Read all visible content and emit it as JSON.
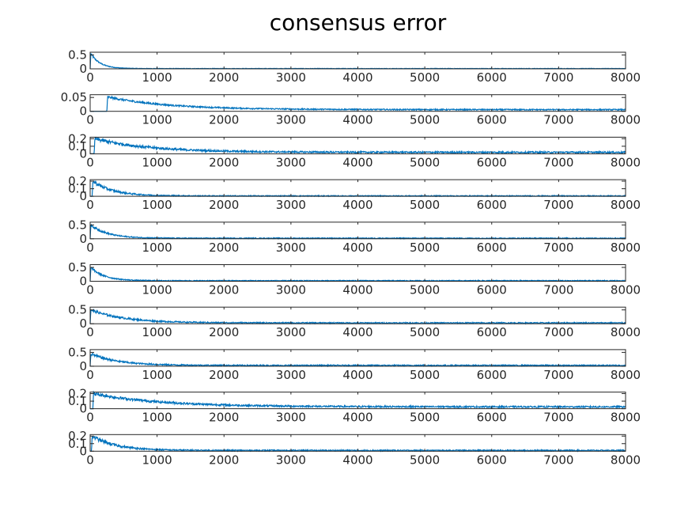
{
  "figure": {
    "title": "consensus error",
    "line_color": "#0072bd",
    "axis_color": "#262626"
  },
  "chart_data": [
    {
      "type": "line",
      "xlim": [
        0,
        8000
      ],
      "ylim": [
        0,
        0.6
      ],
      "yticks": [
        0,
        0.5
      ],
      "xticks": [
        0,
        1000,
        2000,
        3000,
        4000,
        5000,
        6000,
        7000,
        8000
      ],
      "series": [
        {
          "start": 0,
          "peak_x": 10,
          "peak": 0.55,
          "decay": 140,
          "floor": 0.01,
          "tail_amp": 0.008,
          "noise": 0.03
        }
      ]
    },
    {
      "type": "line",
      "xlim": [
        0,
        8000
      ],
      "ylim": [
        0,
        0.06
      ],
      "yticks": [
        0,
        0.05
      ],
      "xticks": [
        0,
        1000,
        2000,
        3000,
        4000,
        5000,
        6000,
        7000,
        8000
      ],
      "series": [
        {
          "start": 250,
          "peak_x": 260,
          "peak": 0.052,
          "decay": 900,
          "floor": 0.006,
          "tail_amp": 0.002,
          "noise": 0.002
        }
      ]
    },
    {
      "type": "line",
      "xlim": [
        0,
        8000
      ],
      "ylim": [
        0,
        0.22
      ],
      "yticks": [
        0,
        0.1,
        0.2
      ],
      "xticks": [
        0,
        1000,
        2000,
        3000,
        4000,
        5000,
        6000,
        7000,
        8000
      ],
      "series": [
        {
          "start": 60,
          "peak_x": 70,
          "peak": 0.2,
          "decay": 800,
          "floor": 0.02,
          "tail_amp": 0.01,
          "noise": 0.015
        }
      ]
    },
    {
      "type": "line",
      "xlim": [
        0,
        8000
      ],
      "ylim": [
        0,
        0.22
      ],
      "yticks": [
        0,
        0.1,
        0.2
      ],
      "xticks": [
        0,
        1000,
        2000,
        3000,
        4000,
        5000,
        6000,
        7000,
        8000
      ],
      "series": [
        {
          "start": 30,
          "peak_x": 40,
          "peak": 0.2,
          "decay": 300,
          "floor": 0.005,
          "tail_amp": 0.006,
          "noise": 0.02
        }
      ]
    },
    {
      "type": "line",
      "xlim": [
        0,
        8000
      ],
      "ylim": [
        0,
        0.6
      ],
      "yticks": [
        0,
        0.5
      ],
      "xticks": [
        0,
        1000,
        2000,
        3000,
        4000,
        5000,
        6000,
        7000,
        8000
      ],
      "series": [
        {
          "start": 0,
          "peak_x": 10,
          "peak": 0.5,
          "decay": 250,
          "floor": 0.02,
          "tail_amp": 0.015,
          "noise": 0.03
        }
      ]
    },
    {
      "type": "line",
      "xlim": [
        0,
        8000
      ],
      "ylim": [
        0,
        0.6
      ],
      "yticks": [
        0,
        0.5
      ],
      "xticks": [
        0,
        1000,
        2000,
        3000,
        4000,
        5000,
        6000,
        7000,
        8000
      ],
      "series": [
        {
          "start": 0,
          "peak_x": 10,
          "peak": 0.5,
          "decay": 200,
          "floor": 0.02,
          "tail_amp": 0.015,
          "noise": 0.03
        }
      ]
    },
    {
      "type": "line",
      "xlim": [
        0,
        8000
      ],
      "ylim": [
        0,
        0.6
      ],
      "yticks": [
        0,
        0.5
      ],
      "xticks": [
        0,
        1000,
        2000,
        3000,
        4000,
        5000,
        6000,
        7000,
        8000
      ],
      "series": [
        {
          "start": 0,
          "peak_x": 10,
          "peak": 0.5,
          "decay": 500,
          "floor": 0.03,
          "tail_amp": 0.02,
          "noise": 0.03
        }
      ]
    },
    {
      "type": "line",
      "xlim": [
        0,
        8000
      ],
      "ylim": [
        0,
        0.6
      ],
      "yticks": [
        0,
        0.5
      ],
      "xticks": [
        0,
        1000,
        2000,
        3000,
        4000,
        5000,
        6000,
        7000,
        8000
      ],
      "series": [
        {
          "start": 0,
          "peak_x": 10,
          "peak": 0.45,
          "decay": 400,
          "floor": 0.03,
          "tail_amp": 0.02,
          "noise": 0.03
        }
      ]
    },
    {
      "type": "line",
      "xlim": [
        0,
        8000
      ],
      "ylim": [
        0,
        0.22
      ],
      "yticks": [
        0,
        0.1,
        0.2
      ],
      "xticks": [
        0,
        1000,
        2000,
        3000,
        4000,
        5000,
        6000,
        7000,
        8000
      ],
      "series": [
        {
          "start": 40,
          "peak_x": 50,
          "peak": 0.2,
          "decay": 1000,
          "floor": 0.025,
          "tail_amp": 0.01,
          "noise": 0.012
        }
      ]
    },
    {
      "type": "line",
      "xlim": [
        0,
        8000
      ],
      "ylim": [
        0,
        0.22
      ],
      "yticks": [
        0,
        0.1,
        0.2
      ],
      "xticks": [
        0,
        1000,
        2000,
        3000,
        4000,
        5000,
        6000,
        7000,
        8000
      ],
      "series": [
        {
          "start": 20,
          "peak_x": 30,
          "peak": 0.2,
          "decay": 350,
          "floor": 0.01,
          "tail_amp": 0.008,
          "noise": 0.02
        }
      ]
    }
  ]
}
